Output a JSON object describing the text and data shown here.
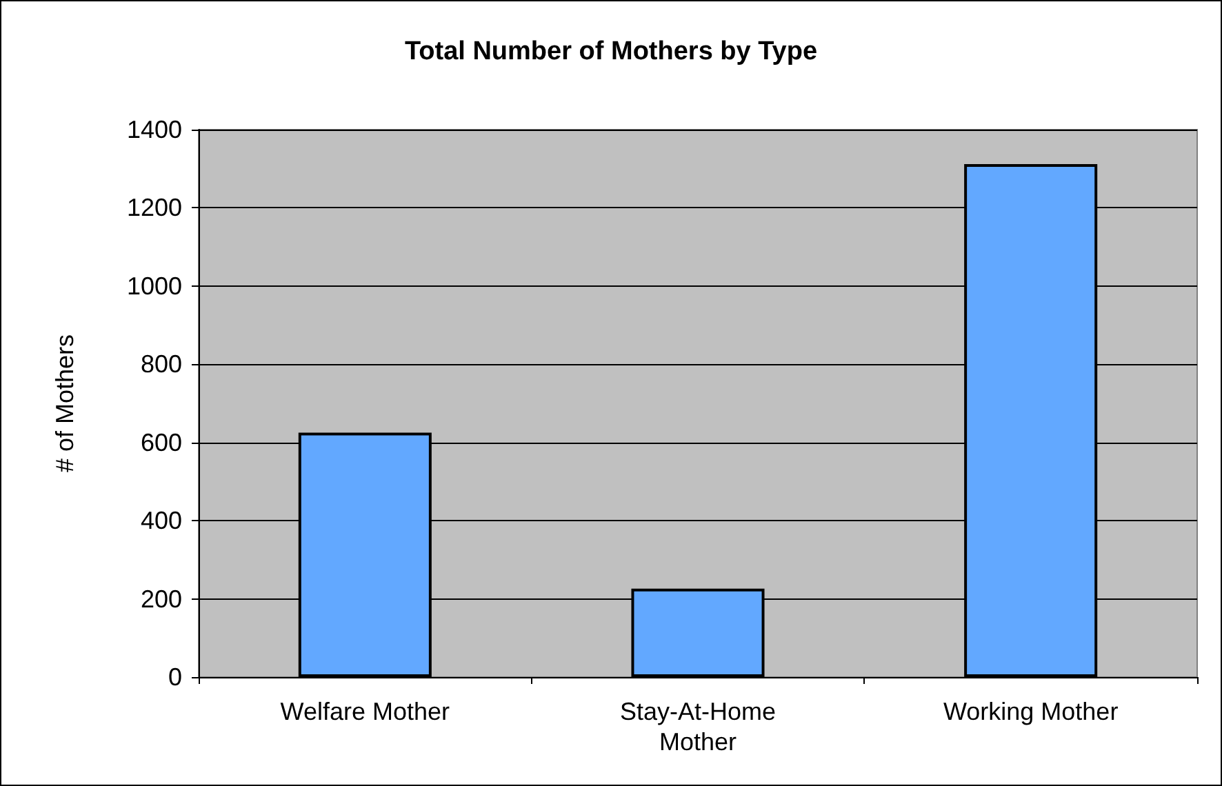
{
  "chart_data": {
    "type": "bar",
    "title": "Total Number of Mothers by Type",
    "ylabel": "# of Mothers",
    "categories": [
      "Welfare Mother",
      "Stay-At-Home\nMother",
      "Working Mother"
    ],
    "values": [
      625,
      226,
      1312
    ],
    "color": "#62a8ff",
    "ylim": [
      0,
      1400
    ],
    "yticks": [
      0,
      200,
      400,
      600,
      800,
      1000,
      1200,
      1400
    ],
    "grid": "y"
  }
}
